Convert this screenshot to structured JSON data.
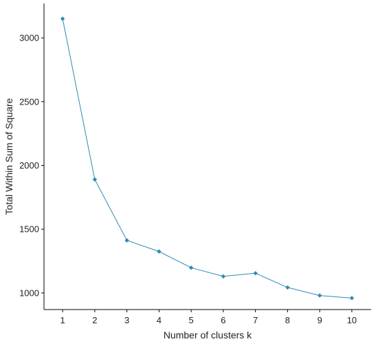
{
  "chart_data": {
    "type": "line",
    "xlabel": "Number of clusters k",
    "ylabel": "Total Within Sum of Square",
    "x": [
      1,
      2,
      3,
      4,
      5,
      6,
      7,
      8,
      9,
      10
    ],
    "x_ticks": [
      "1",
      "2",
      "3",
      "4",
      "5",
      "6",
      "7",
      "8",
      "9",
      "10"
    ],
    "y": [
      3150,
      1890,
      1412,
      1325,
      1198,
      1130,
      1155,
      1043,
      980,
      960
    ],
    "y_ticks": [
      1000,
      1500,
      2000,
      2500,
      3000
    ],
    "xlim": [
      0.42,
      10.6
    ],
    "ylim": [
      870,
      3270
    ],
    "grid": false,
    "legend": "none",
    "series_color": "#2E8AB4",
    "marker": "diamond"
  }
}
